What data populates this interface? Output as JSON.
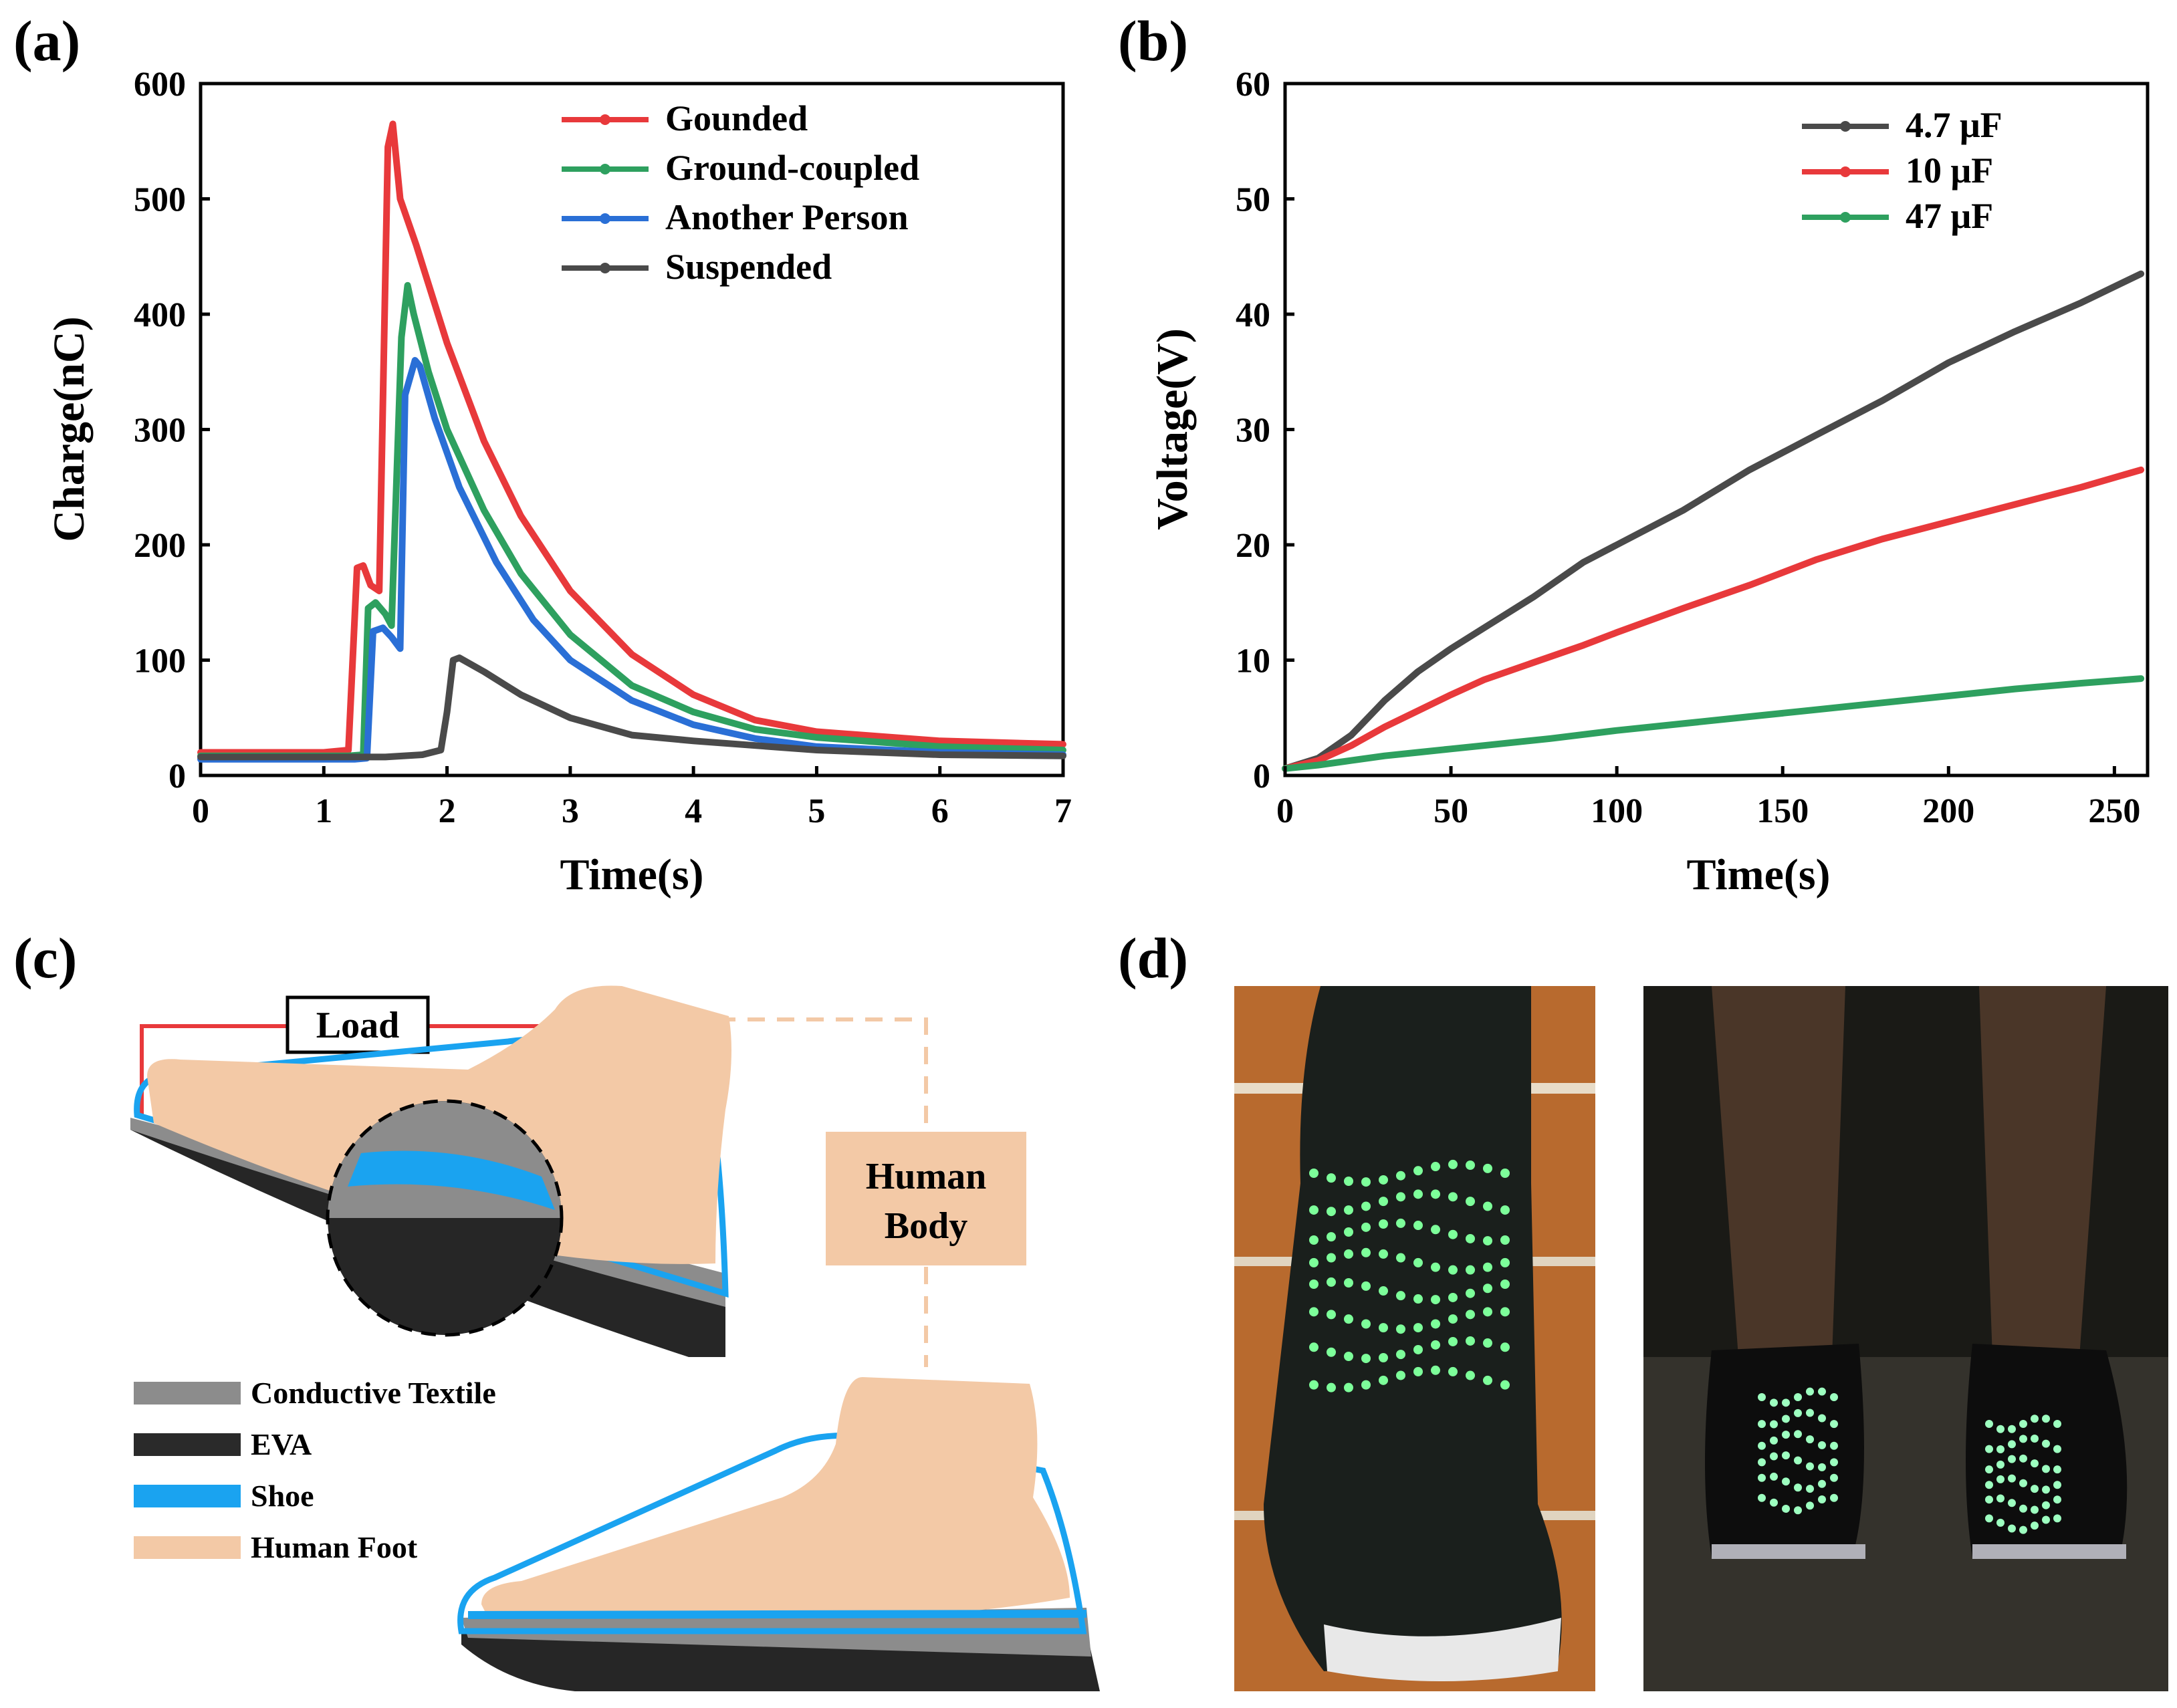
{
  "panels": {
    "a": {
      "letter": "(a)"
    },
    "b": {
      "letter": "(b)"
    },
    "c": {
      "letter": "(c)"
    },
    "d": {
      "letter": "(d)"
    }
  },
  "chart_data": [
    {
      "id": "a",
      "type": "line",
      "title": "",
      "xlabel": "Time(s)",
      "ylabel": "Charge(nC)",
      "xlim": [
        0,
        7
      ],
      "ylim": [
        0,
        600
      ],
      "xticks": [
        0,
        1,
        2,
        3,
        4,
        5,
        6,
        7
      ],
      "yticks": [
        0,
        100,
        200,
        300,
        400,
        500,
        600
      ],
      "legend_position": "top-right",
      "series": [
        {
          "name": "Gounded",
          "color": "#e8393b",
          "x": [
            0,
            1.0,
            1.2,
            1.27,
            1.32,
            1.38,
            1.45,
            1.52,
            1.56,
            1.62,
            1.75,
            2.0,
            2.3,
            2.6,
            3.0,
            3.5,
            4.0,
            4.5,
            5.0,
            6.0,
            7.0
          ],
          "y": [
            20,
            20,
            22,
            180,
            182,
            165,
            160,
            545,
            565,
            500,
            460,
            375,
            290,
            225,
            160,
            105,
            70,
            48,
            38,
            30,
            27
          ]
        },
        {
          "name": "Ground-coupled",
          "color": "#2ea05f",
          "x": [
            0,
            1.2,
            1.32,
            1.36,
            1.42,
            1.5,
            1.55,
            1.63,
            1.68,
            1.73,
            1.85,
            2.0,
            2.3,
            2.6,
            3.0,
            3.5,
            4.0,
            4.5,
            5.0,
            6.0,
            7.0
          ],
          "y": [
            17,
            17,
            18,
            145,
            150,
            140,
            130,
            380,
            425,
            400,
            350,
            300,
            230,
            175,
            122,
            78,
            55,
            40,
            33,
            25,
            22
          ]
        },
        {
          "name": "Another Person",
          "color": "#2a6fd6",
          "x": [
            0,
            1.25,
            1.35,
            1.4,
            1.48,
            1.55,
            1.62,
            1.66,
            1.74,
            1.78,
            1.9,
            2.1,
            2.4,
            2.7,
            3.0,
            3.5,
            4.0,
            4.5,
            5.0,
            6.0,
            7.0
          ],
          "y": [
            14,
            14,
            15,
            125,
            128,
            120,
            110,
            330,
            360,
            355,
            310,
            250,
            185,
            135,
            100,
            65,
            44,
            32,
            25,
            20,
            18
          ]
        },
        {
          "name": "Suspended",
          "color": "#4a4a4a",
          "x": [
            0,
            1.5,
            1.8,
            1.95,
            2.0,
            2.05,
            2.1,
            2.3,
            2.6,
            3.0,
            3.5,
            4.0,
            4.5,
            5.0,
            6.0,
            7.0
          ],
          "y": [
            16,
            16,
            18,
            22,
            55,
            100,
            102,
            90,
            70,
            50,
            35,
            30,
            26,
            22,
            18,
            17
          ]
        }
      ]
    },
    {
      "id": "b",
      "type": "line",
      "title": "",
      "xlabel": "Time(s)",
      "ylabel": "Voltage(V)",
      "xlim": [
        0,
        260
      ],
      "ylim": [
        0,
        60
      ],
      "xticks": [
        0,
        50,
        100,
        150,
        200,
        250
      ],
      "yticks": [
        0,
        10,
        20,
        30,
        40,
        50,
        60
      ],
      "legend_position": "top-right",
      "series": [
        {
          "name": "4.7 μF",
          "color": "#4a4a4a",
          "x": [
            0,
            10,
            20,
            30,
            40,
            50,
            60,
            75,
            90,
            100,
            120,
            140,
            160,
            180,
            200,
            220,
            240,
            258
          ],
          "y": [
            0.6,
            1.5,
            3.5,
            6.5,
            9.0,
            11.0,
            12.8,
            15.5,
            18.5,
            20.0,
            23.0,
            26.5,
            29.5,
            32.5,
            35.8,
            38.5,
            41.0,
            43.5
          ]
        },
        {
          "name": "10 μF",
          "color": "#e8393b",
          "x": [
            0,
            10,
            20,
            30,
            40,
            50,
            60,
            75,
            90,
            100,
            120,
            140,
            160,
            180,
            200,
            220,
            240,
            258
          ],
          "y": [
            0.6,
            1.3,
            2.6,
            4.2,
            5.6,
            7.0,
            8.3,
            9.8,
            11.3,
            12.4,
            14.5,
            16.5,
            18.7,
            20.5,
            22.0,
            23.5,
            25.0,
            26.5
          ]
        },
        {
          "name": "47 μF",
          "color": "#2ea05f",
          "x": [
            0,
            10,
            20,
            30,
            40,
            50,
            60,
            80,
            100,
            120,
            140,
            160,
            180,
            200,
            220,
            240,
            258
          ],
          "y": [
            0.6,
            0.9,
            1.3,
            1.7,
            2.0,
            2.3,
            2.6,
            3.2,
            3.9,
            4.5,
            5.1,
            5.7,
            6.3,
            6.9,
            7.5,
            8.0,
            8.4
          ]
        }
      ]
    }
  ],
  "diagram_c": {
    "load_label": "Load",
    "body_label_line1": "Human",
    "body_label_line2": "Body",
    "legend": [
      {
        "label": "Conductive Textile",
        "color": "#8c8c8c"
      },
      {
        "label": "EVA",
        "color": "#2a2a2a"
      },
      {
        "label": "Shoe",
        "color": "#1aa3f0"
      },
      {
        "label": "Human Foot",
        "color": "#f3c9a6"
      }
    ]
  }
}
